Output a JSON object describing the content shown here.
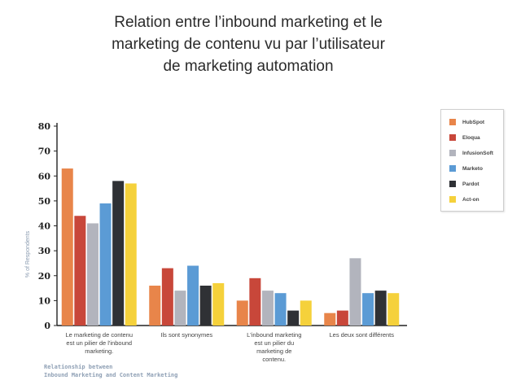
{
  "title_lines": [
    "Relation entre l’inbound marketing et le",
    "marketing de contenu vu par l’utilisateur",
    "de marketing automation"
  ],
  "footer_lines": [
    "Relationship between",
    "Inbound Marketing and Content Marketing"
  ],
  "colors": {
    "HubSpot": "#e8854a",
    "Eloqua": "#c8473a",
    "InfusionSoft": "#b2b4bd",
    "Marketo": "#5b9bd5",
    "Pardot": "#2f3135",
    "Act-on": "#f5d13b"
  },
  "chart_data": {
    "type": "bar",
    "categories": [
      [
        "Le marketing de contenu",
        "est un pilier de l'inbound",
        "marketing."
      ],
      [
        "Ils sont synonymes"
      ],
      [
        "L'inbound marketing",
        "est un pilier du",
        "marketing de",
        "contenu."
      ],
      [
        "Les deux sont différents"
      ]
    ],
    "series": [
      {
        "name": "HubSpot",
        "values": [
          63,
          16,
          10,
          5
        ]
      },
      {
        "name": "Eloqua",
        "values": [
          44,
          23,
          19,
          6
        ]
      },
      {
        "name": "InfusionSoft",
        "values": [
          41,
          14,
          14,
          27
        ]
      },
      {
        "name": "Marketo",
        "values": [
          49,
          24,
          13,
          13
        ]
      },
      {
        "name": "Pardot",
        "values": [
          58,
          16,
          6,
          14
        ]
      },
      {
        "name": "Act-on",
        "values": [
          57,
          17,
          10,
          13
        ]
      }
    ],
    "ylabel": "% of Respondents",
    "ylim": [
      0,
      80
    ],
    "yticks": [
      0,
      10,
      20,
      30,
      40,
      50,
      60,
      70,
      80
    ],
    "legend_position": "top-right",
    "grid": false
  }
}
